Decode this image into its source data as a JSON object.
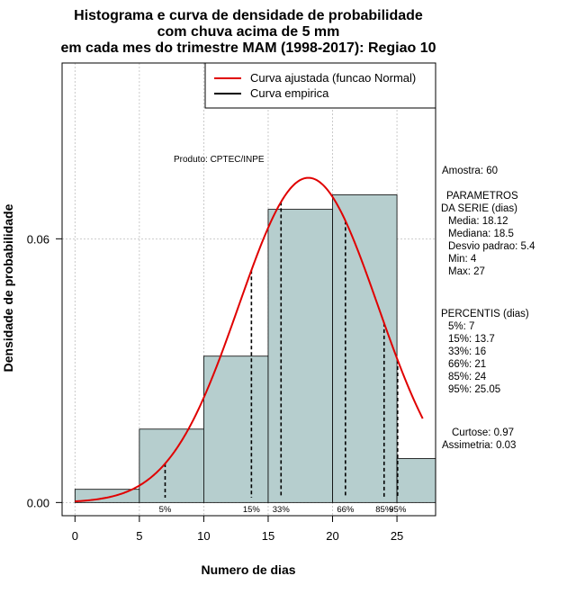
{
  "chart_data": {
    "type": "histogram",
    "title_lines": [
      "Histograma e curva de densidade de probabilidade",
      "com chuva acima de 5 mm",
      "em cada mes do trimestre MAM (1998-2017): Regiao 10"
    ],
    "xlabel": "Numero de dias",
    "ylabel": "Densidade de probabilidade",
    "xlim": [
      -1,
      28
    ],
    "ylim": [
      -0.003,
      0.1
    ],
    "x_ticks": [
      0,
      5,
      10,
      15,
      20,
      25
    ],
    "x_tick_labels": [
      "0",
      "5",
      "10",
      "15",
      "20",
      "25"
    ],
    "y_ticks": [
      0.0,
      0.06
    ],
    "y_tick_labels": [
      "0.00",
      "0.06"
    ],
    "grid_x": [
      0,
      5,
      10,
      15,
      20,
      25
    ],
    "grid_y": [
      0.0,
      0.06,
      0.1
    ],
    "bins": [
      {
        "x0": 0,
        "x1": 5,
        "density": 0.003
      },
      {
        "x0": 5,
        "x1": 10,
        "density": 0.0167
      },
      {
        "x0": 10,
        "x1": 15,
        "density": 0.0333
      },
      {
        "x0": 15,
        "x1": 20,
        "density": 0.0667
      },
      {
        "x0": 20,
        "x1": 25,
        "density": 0.07
      },
      {
        "x0": 25,
        "x1": 30,
        "density": 0.01
      }
    ],
    "bar_color": "#b6cece",
    "normal_curve": {
      "mean": 18.12,
      "sd": 5.4,
      "x_start": 0,
      "x_end": 27,
      "color": "#e00000"
    },
    "percentile_lines": [
      {
        "label": "5%",
        "x": 7
      },
      {
        "label": "15%",
        "x": 13.7
      },
      {
        "label": "33%",
        "x": 16
      },
      {
        "label": "66%",
        "x": 21
      },
      {
        "label": "85%",
        "x": 24
      },
      {
        "label": "95%",
        "x": 25.05
      }
    ],
    "legend": {
      "position": "top-right",
      "entries": [
        {
          "label": "Curva ajustada (funcao Normal)",
          "color": "#e00000"
        },
        {
          "label": "Curva empirica",
          "color": "#000000"
        }
      ]
    },
    "annotation": "Produto: CPTEC/INPE",
    "side_panel": {
      "amostra": "Amostra: 60",
      "parametros_title": "PARAMETROS",
      "parametros_sub": "DA SERIE (dias)",
      "media": "Media: 18.12",
      "mediana": "Mediana: 18.5",
      "desvio": "Desvio padrao: 5.4",
      "min": "Min: 4",
      "max": "Max: 27",
      "percentis_title": "PERCENTIS (dias)",
      "p5": "5%: 7",
      "p15": "15%: 13.7",
      "p33": "33%: 16",
      "p66": "66%: 21",
      "p85": "85%: 24",
      "p95": "95%: 25.05",
      "curtose": "Curtose: 0.97",
      "assimetria": "Assimetria: 0.03"
    }
  }
}
